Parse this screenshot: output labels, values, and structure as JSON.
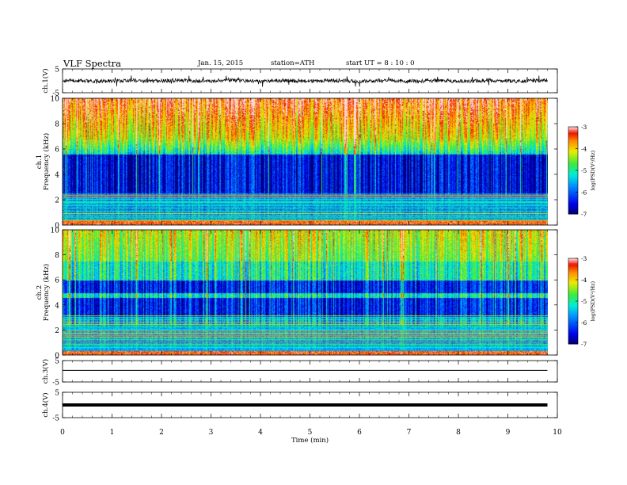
{
  "header": {
    "title": "VLF  Spectra",
    "date": "Jan. 15, 2015",
    "station": "station=ATH",
    "start": "start  UT =   8  : 10 : 0"
  },
  "chart_data": [
    {
      "type": "line",
      "name": "ch1-waveform",
      "ylabel": "ch.1(V)",
      "ylim": [
        -5,
        5
      ],
      "yticks": [
        "5",
        "-5"
      ],
      "x_range_min": [
        0,
        9.8
      ],
      "description_level": "noisy waveform around 0 V, amplitude about ±1 V with spikes"
    },
    {
      "type": "heatmap",
      "name": "ch1-spectrogram",
      "ylabel": "ch.1\nFrequency  (kHz)",
      "ylim_khz": [
        0,
        10
      ],
      "yticks": [
        "0",
        "2",
        "4",
        "6",
        "8",
        "10"
      ],
      "x_range_min": [
        0,
        9.8
      ],
      "colorbar": {
        "label": "log(PSD(V²/Hz)",
        "ticks": [
          "-3",
          "-4",
          "-5",
          "-6",
          "-7"
        ],
        "range": [
          -7,
          -3
        ]
      }
    },
    {
      "type": "heatmap",
      "name": "ch2-spectrogram",
      "ylabel": "ch.2\nFrequency  (kHz)",
      "ylim_khz": [
        0,
        10
      ],
      "yticks": [
        "0",
        "2",
        "4",
        "6",
        "8",
        "10"
      ],
      "x_range_min": [
        0,
        9.8
      ],
      "colorbar": {
        "label": "log(PSD(V²/Hz)",
        "ticks": [
          "-3",
          "-4",
          "-5",
          "-6",
          "-7"
        ],
        "range": [
          -7,
          -3
        ]
      }
    },
    {
      "type": "line",
      "name": "ch3-waveform",
      "ylabel": "ch.3(V)",
      "ylim": [
        -5,
        5
      ],
      "yticks": [
        "5",
        "-5"
      ],
      "x_range_min": [
        0,
        9.8
      ],
      "level": 0.4
    },
    {
      "type": "line",
      "name": "ch4-waveform",
      "ylabel": "ch.4(V)",
      "ylim": [
        -5,
        5
      ],
      "yticks": [
        "5",
        "-5"
      ],
      "x_range_min": [
        0,
        9.8
      ],
      "level": 0
    }
  ],
  "xaxis": {
    "label": "Time  (min)",
    "range": [
      0,
      10
    ],
    "ticks": [
      "0",
      "1",
      "2",
      "3",
      "4",
      "5",
      "6",
      "7",
      "8",
      "9",
      "10"
    ]
  }
}
